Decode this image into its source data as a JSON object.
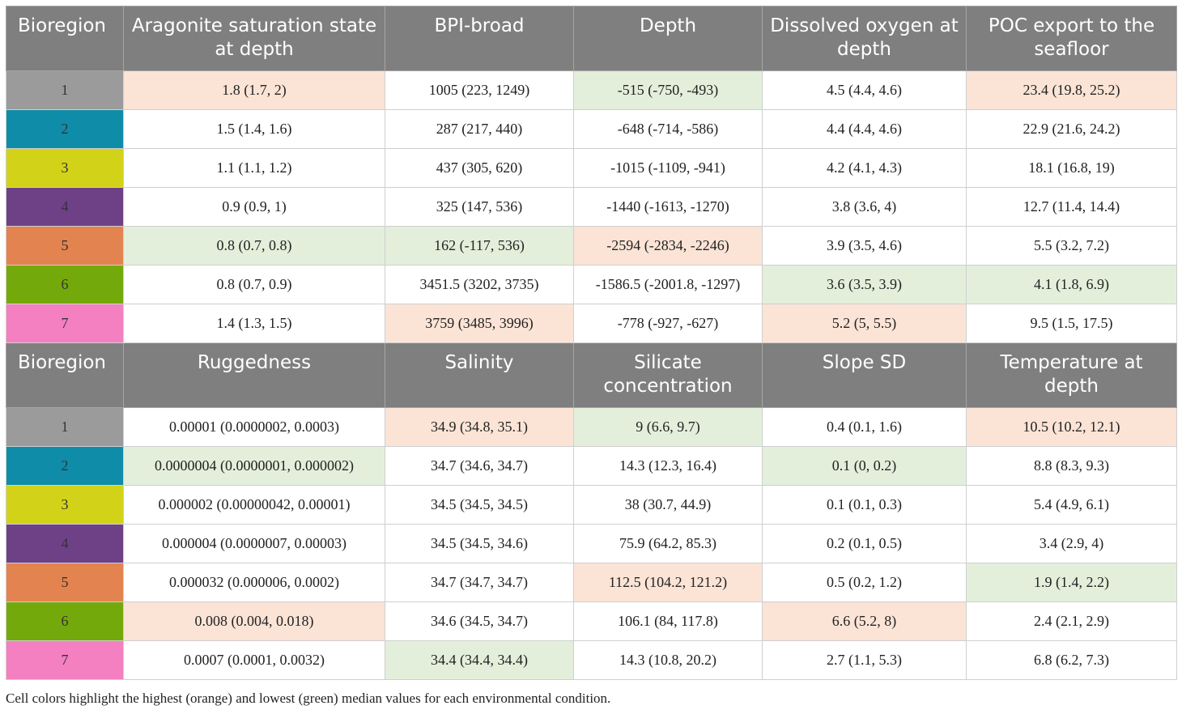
{
  "region_colors": [
    "#9b9b9b",
    "#0f8da8",
    "#d2d319",
    "#6e4187",
    "#e3834f",
    "#74a90b",
    "#f47fc1"
  ],
  "highlight_colors": {
    "highest": "#fbe4d6",
    "lowest": "#e3efdb"
  },
  "tables": [
    {
      "headers": [
        "Bioregion",
        "Aragonite saturation state at depth",
        "BPI-broad",
        "Depth",
        "Dissolved oxygen at depth",
        "POC export to the seafloor"
      ],
      "rows": [
        {
          "region": "1",
          "cells": [
            {
              "v": "1.8 (1.7, 2)",
              "h": "o"
            },
            {
              "v": "1005 (223, 1249)",
              "h": ""
            },
            {
              "v": "-515 (-750, -493)",
              "h": "g"
            },
            {
              "v": "4.5 (4.4, 4.6)",
              "h": ""
            },
            {
              "v": "23.4 (19.8, 25.2)",
              "h": "o"
            }
          ]
        },
        {
          "region": "2",
          "cells": [
            {
              "v": "1.5 (1.4, 1.6)",
              "h": ""
            },
            {
              "v": "287 (217, 440)",
              "h": ""
            },
            {
              "v": "-648 (-714, -586)",
              "h": ""
            },
            {
              "v": "4.4 (4.4, 4.6)",
              "h": ""
            },
            {
              "v": "22.9 (21.6, 24.2)",
              "h": ""
            }
          ]
        },
        {
          "region": "3",
          "cells": [
            {
              "v": "1.1 (1.1, 1.2)",
              "h": ""
            },
            {
              "v": "437 (305, 620)",
              "h": ""
            },
            {
              "v": "-1015 (-1109, -941)",
              "h": ""
            },
            {
              "v": "4.2 (4.1, 4.3)",
              "h": ""
            },
            {
              "v": "18.1 (16.8, 19)",
              "h": ""
            }
          ]
        },
        {
          "region": "4",
          "cells": [
            {
              "v": "0.9 (0.9, 1)",
              "h": ""
            },
            {
              "v": "325 (147, 536)",
              "h": ""
            },
            {
              "v": "-1440 (-1613, -1270)",
              "h": ""
            },
            {
              "v": "3.8 (3.6, 4)",
              "h": ""
            },
            {
              "v": "12.7 (11.4, 14.4)",
              "h": ""
            }
          ]
        },
        {
          "region": "5",
          "cells": [
            {
              "v": "0.8 (0.7, 0.8)",
              "h": "g"
            },
            {
              "v": "162 (-117, 536)",
              "h": "g"
            },
            {
              "v": "-2594 (-2834, -2246)",
              "h": "o"
            },
            {
              "v": "3.9 (3.5, 4.6)",
              "h": ""
            },
            {
              "v": "5.5 (3.2, 7.2)",
              "h": ""
            }
          ]
        },
        {
          "region": "6",
          "cells": [
            {
              "v": "0.8 (0.7, 0.9)",
              "h": ""
            },
            {
              "v": "3451.5 (3202, 3735)",
              "h": ""
            },
            {
              "v": "-1586.5 (-2001.8, -1297)",
              "h": ""
            },
            {
              "v": "3.6 (3.5, 3.9)",
              "h": "g"
            },
            {
              "v": "4.1 (1.8, 6.9)",
              "h": "g"
            }
          ]
        },
        {
          "region": "7",
          "cells": [
            {
              "v": "1.4 (1.3, 1.5)",
              "h": ""
            },
            {
              "v": "3759 (3485, 3996)",
              "h": "o"
            },
            {
              "v": "-778 (-927, -627)",
              "h": ""
            },
            {
              "v": "5.2 (5, 5.5)",
              "h": "o"
            },
            {
              "v": "9.5 (1.5, 17.5)",
              "h": ""
            }
          ]
        }
      ]
    },
    {
      "headers": [
        "Bioregion",
        "Ruggedness",
        "Salinity",
        "Silicate concentration",
        "Slope SD",
        "Temperature at depth"
      ],
      "rows": [
        {
          "region": "1",
          "cells": [
            {
              "v": "0.00001 (0.0000002, 0.0003)",
              "h": ""
            },
            {
              "v": "34.9 (34.8, 35.1)",
              "h": "o"
            },
            {
              "v": "9 (6.6, 9.7)",
              "h": "g"
            },
            {
              "v": "0.4 (0.1, 1.6)",
              "h": ""
            },
            {
              "v": "10.5 (10.2, 12.1)",
              "h": "o"
            }
          ]
        },
        {
          "region": "2",
          "cells": [
            {
              "v": "0.0000004 (0.0000001, 0.000002)",
              "h": "g"
            },
            {
              "v": "34.7 (34.6, 34.7)",
              "h": ""
            },
            {
              "v": "14.3 (12.3, 16.4)",
              "h": ""
            },
            {
              "v": "0.1 (0, 0.2)",
              "h": "g"
            },
            {
              "v": "8.8 (8.3, 9.3)",
              "h": ""
            }
          ]
        },
        {
          "region": "3",
          "cells": [
            {
              "v": "0.000002 (0.00000042, 0.00001)",
              "h": ""
            },
            {
              "v": "34.5 (34.5, 34.5)",
              "h": ""
            },
            {
              "v": "38 (30.7, 44.9)",
              "h": ""
            },
            {
              "v": "0.1 (0.1, 0.3)",
              "h": ""
            },
            {
              "v": "5.4 (4.9, 6.1)",
              "h": ""
            }
          ]
        },
        {
          "region": "4",
          "cells": [
            {
              "v": "0.000004 (0.0000007, 0.00003)",
              "h": ""
            },
            {
              "v": "34.5 (34.5, 34.6)",
              "h": ""
            },
            {
              "v": "75.9 (64.2, 85.3)",
              "h": ""
            },
            {
              "v": "0.2 (0.1, 0.5)",
              "h": ""
            },
            {
              "v": "3.4 (2.9, 4)",
              "h": ""
            }
          ]
        },
        {
          "region": "5",
          "cells": [
            {
              "v": "0.000032 (0.000006, 0.0002)",
              "h": ""
            },
            {
              "v": "34.7 (34.7, 34.7)",
              "h": ""
            },
            {
              "v": "112.5 (104.2, 121.2)",
              "h": "o"
            },
            {
              "v": "0.5 (0.2, 1.2)",
              "h": ""
            },
            {
              "v": "1.9 (1.4, 2.2)",
              "h": "g"
            }
          ]
        },
        {
          "region": "6",
          "cells": [
            {
              "v": "0.008 (0.004, 0.018)",
              "h": "o"
            },
            {
              "v": "34.6 (34.5, 34.7)",
              "h": ""
            },
            {
              "v": "106.1 (84, 117.8)",
              "h": ""
            },
            {
              "v": "6.6 (5.2, 8)",
              "h": "o"
            },
            {
              "v": "2.4 (2.1, 2.9)",
              "h": ""
            }
          ]
        },
        {
          "region": "7",
          "cells": [
            {
              "v": "0.0007 (0.0001, 0.0032)",
              "h": ""
            },
            {
              "v": "34.4 (34.4, 34.4)",
              "h": "g"
            },
            {
              "v": "14.3 (10.8, 20.2)",
              "h": ""
            },
            {
              "v": "2.7 (1.1, 5.3)",
              "h": ""
            },
            {
              "v": "6.8 (6.2, 7.3)",
              "h": ""
            }
          ]
        }
      ]
    }
  ],
  "caption": "Cell colors highlight the highest (orange) and lowest (green) median values for each environmental condition."
}
